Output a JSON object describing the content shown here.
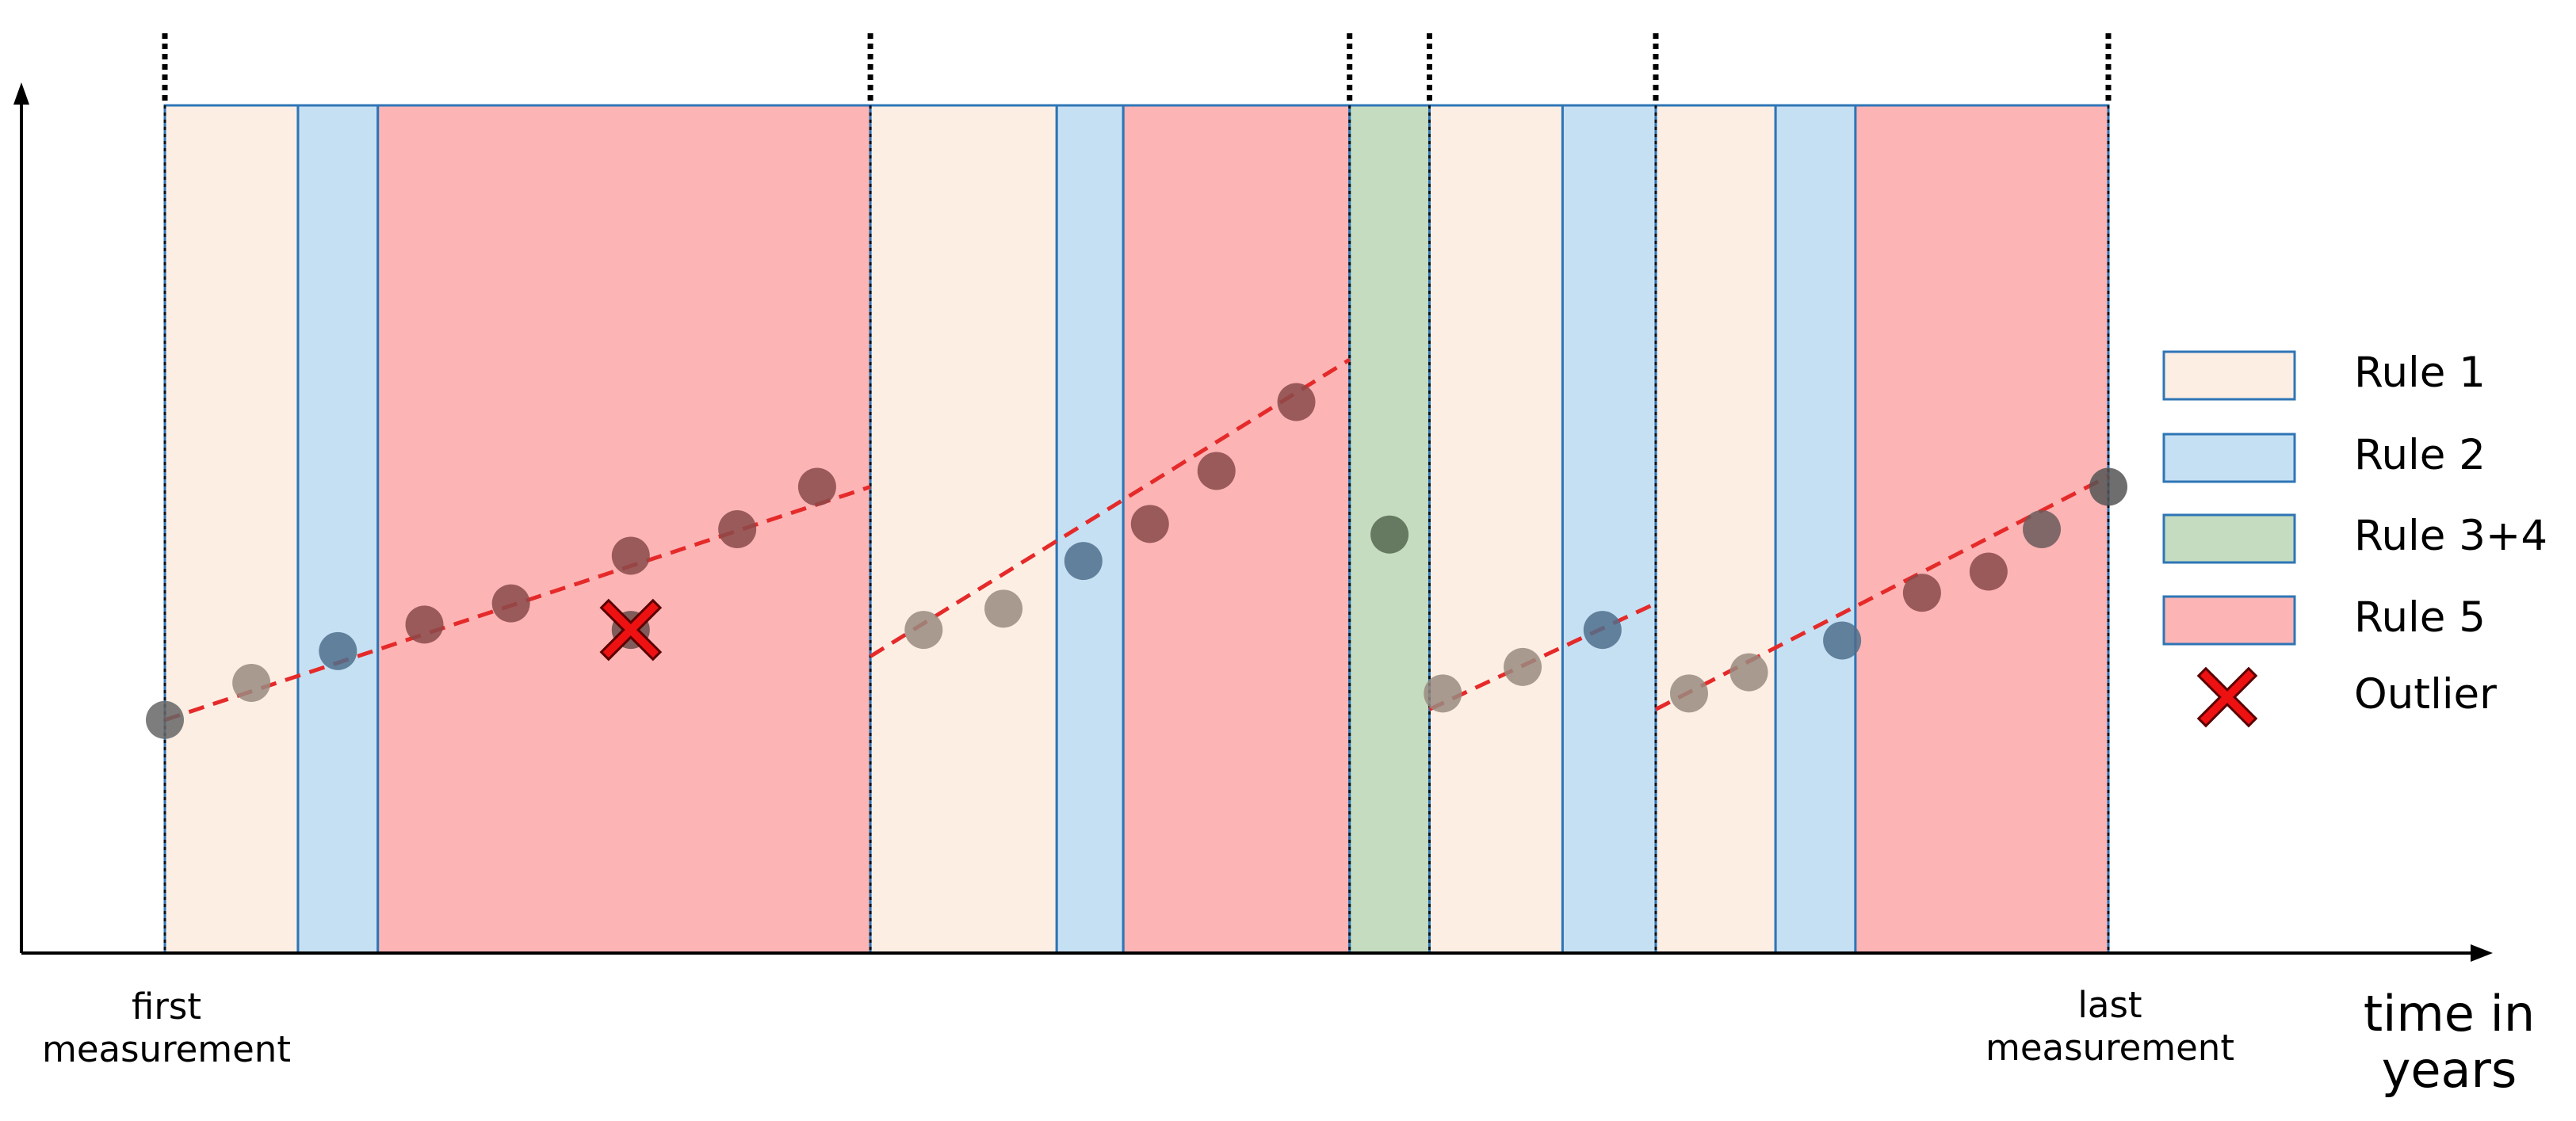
{
  "colors": {
    "rule1_fill": "#fdeee4",
    "rule2_fill": "#c6e0f3",
    "rule34_fill": "#c5dcc0",
    "rule5_fill": "#fcb4b5",
    "band_border": "#2e75b6",
    "trend_line": "#e52a2a",
    "outlier_marker": "#ee1111",
    "axis": "#000000",
    "boundary_line": "#000000"
  },
  "segments": [
    {
      "rule": "rule1",
      "from": 0.0,
      "to": 1.0
    },
    {
      "rule": "rule2",
      "from": 1.0,
      "to": 1.6
    },
    {
      "rule": "rule5",
      "from": 1.6,
      "to": 5.3
    },
    {
      "rule": "rule1",
      "from": 5.3,
      "to": 6.7
    },
    {
      "rule": "rule2",
      "from": 6.7,
      "to": 7.2
    },
    {
      "rule": "rule5",
      "from": 7.2,
      "to": 8.9
    },
    {
      "rule": "rule34",
      "from": 8.9,
      "to": 9.5
    },
    {
      "rule": "rule1",
      "from": 9.5,
      "to": 10.5
    },
    {
      "rule": "rule2",
      "from": 10.5,
      "to": 11.2
    },
    {
      "rule": "rule1",
      "from": 11.2,
      "to": 12.1
    },
    {
      "rule": "rule2",
      "from": 12.1,
      "to": 12.7
    },
    {
      "rule": "rule5",
      "from": 12.7,
      "to": 14.6
    }
  ],
  "boundaries": [
    0.0,
    5.3,
    8.9,
    9.5,
    11.2,
    14.6
  ],
  "trends": [
    {
      "from": [
        0.0,
        2.2
      ],
      "to": [
        5.3,
        4.4
      ]
    },
    {
      "from": [
        5.3,
        2.8
      ],
      "to": [
        8.9,
        5.6
      ]
    },
    {
      "from": [
        9.5,
        2.3
      ],
      "to": [
        11.2,
        3.3
      ]
    },
    {
      "from": [
        11.2,
        2.3
      ],
      "to": [
        14.6,
        4.5
      ]
    }
  ],
  "points": [
    {
      "x": 0.0,
      "y": 2.2,
      "color": "#666666"
    },
    {
      "x": 0.65,
      "y": 2.55,
      "color": "#998b80"
    },
    {
      "x": 1.3,
      "y": 2.85,
      "color": "#4d6f8c"
    },
    {
      "x": 1.95,
      "y": 3.1,
      "color": "#8a4a4a"
    },
    {
      "x": 2.6,
      "y": 3.3,
      "color": "#8a4a4a"
    },
    {
      "x": 3.5,
      "y": 3.05,
      "color": "#6b4a4a"
    },
    {
      "x": 3.5,
      "y": 3.75,
      "color": "#8a4a4a"
    },
    {
      "x": 4.3,
      "y": 4.0,
      "color": "#8a4a4a"
    },
    {
      "x": 4.9,
      "y": 4.4,
      "color": "#8a4a4a"
    },
    {
      "x": 5.7,
      "y": 3.05,
      "color": "#998b80"
    },
    {
      "x": 6.3,
      "y": 3.25,
      "color": "#998b80"
    },
    {
      "x": 6.9,
      "y": 3.7,
      "color": "#4d6f8c"
    },
    {
      "x": 7.4,
      "y": 4.05,
      "color": "#8a4a4a"
    },
    {
      "x": 7.9,
      "y": 4.55,
      "color": "#8a4a4a"
    },
    {
      "x": 8.5,
      "y": 5.2,
      "color": "#8a4a4a"
    },
    {
      "x": 9.2,
      "y": 3.95,
      "color": "#53694f"
    },
    {
      "x": 9.6,
      "y": 2.45,
      "color": "#998b80"
    },
    {
      "x": 10.2,
      "y": 2.7,
      "color": "#998b80"
    },
    {
      "x": 10.8,
      "y": 3.05,
      "color": "#4d6f8c"
    },
    {
      "x": 11.45,
      "y": 2.45,
      "color": "#998b80"
    },
    {
      "x": 11.9,
      "y": 2.65,
      "color": "#998b80"
    },
    {
      "x": 12.6,
      "y": 2.95,
      "color": "#4d6f8c"
    },
    {
      "x": 13.2,
      "y": 3.4,
      "color": "#8a4a4a"
    },
    {
      "x": 13.7,
      "y": 3.6,
      "color": "#8a4a4a"
    },
    {
      "x": 14.1,
      "y": 4.0,
      "color": "#6b5a5a"
    },
    {
      "x": 14.6,
      "y": 4.4,
      "color": "#555555"
    }
  ],
  "outlier": {
    "x": 3.5,
    "y": 3.05
  },
  "labels": {
    "first": [
      "first",
      "measurement"
    ],
    "last": [
      "last",
      "measurement"
    ],
    "x_axis": [
      "time in",
      "years"
    ]
  },
  "legend": [
    {
      "key": "rule1",
      "label": "Rule 1",
      "swatch": "rect"
    },
    {
      "key": "rule2",
      "label": "Rule 2",
      "swatch": "rect"
    },
    {
      "key": "rule34",
      "label": "Rule 3+4",
      "swatch": "rect"
    },
    {
      "key": "rule5",
      "label": "Rule 5",
      "swatch": "rect"
    },
    {
      "key": "outlier",
      "label": "Outlier",
      "swatch": "cross"
    }
  ]
}
